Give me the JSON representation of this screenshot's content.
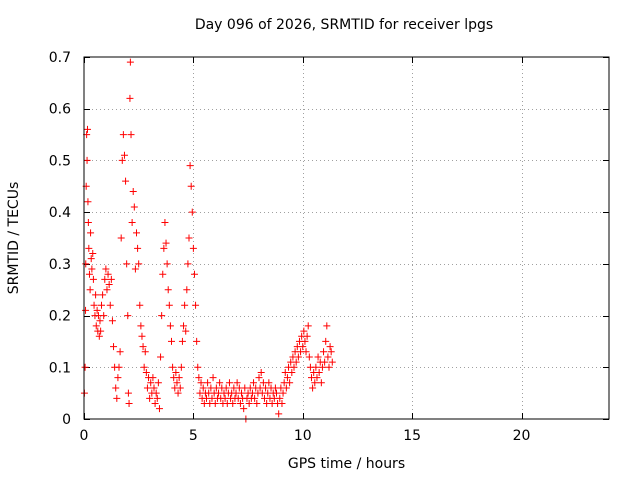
{
  "chart_data": {
    "type": "scatter",
    "title": "Day 096 of 2026, SRMTID for receiver lpgs",
    "xlabel": "GPS time / hours",
    "ylabel": "SRMTID / TECUs",
    "xlim": [
      0,
      24
    ],
    "ylim": [
      0,
      0.7
    ],
    "xticks": [
      0,
      5,
      10,
      15,
      20
    ],
    "yticks": [
      0,
      0.1,
      0.2,
      0.3,
      0.4,
      0.5,
      0.6,
      0.7
    ],
    "grid": true,
    "marker": "+",
    "series": [
      {
        "name": "SRMTID",
        "color": "#ff0000",
        "points": [
          [
            0.02,
            0.05
          ],
          [
            0.05,
            0.1
          ],
          [
            0.07,
            0.21
          ],
          [
            0.08,
            0.3
          ],
          [
            0.1,
            0.45
          ],
          [
            0.12,
            0.55
          ],
          [
            0.14,
            0.5
          ],
          [
            0.16,
            0.56
          ],
          [
            0.18,
            0.42
          ],
          [
            0.2,
            0.38
          ],
          [
            0.22,
            0.33
          ],
          [
            0.25,
            0.28
          ],
          [
            0.28,
            0.25
          ],
          [
            0.3,
            0.36
          ],
          [
            0.33,
            0.31
          ],
          [
            0.36,
            0.29
          ],
          [
            0.4,
            0.32
          ],
          [
            0.43,
            0.27
          ],
          [
            0.46,
            0.22
          ],
          [
            0.5,
            0.2
          ],
          [
            0.53,
            0.24
          ],
          [
            0.56,
            0.18
          ],
          [
            0.6,
            0.21
          ],
          [
            0.63,
            0.17
          ],
          [
            0.66,
            0.2
          ],
          [
            0.7,
            0.16
          ],
          [
            0.73,
            0.19
          ],
          [
            0.76,
            0.17
          ],
          [
            0.8,
            0.22
          ],
          [
            0.85,
            0.24
          ],
          [
            0.9,
            0.2
          ],
          [
            0.95,
            0.27
          ],
          [
            1.0,
            0.29
          ],
          [
            1.05,
            0.25
          ],
          [
            1.1,
            0.28
          ],
          [
            1.15,
            0.26
          ],
          [
            1.2,
            0.22
          ],
          [
            1.25,
            0.27
          ],
          [
            1.3,
            0.19
          ],
          [
            1.35,
            0.14
          ],
          [
            1.4,
            0.1
          ],
          [
            1.45,
            0.06
          ],
          [
            1.5,
            0.04
          ],
          [
            1.55,
            0.08
          ],
          [
            1.6,
            0.1
          ],
          [
            1.65,
            0.13
          ],
          [
            1.7,
            0.35
          ],
          [
            1.75,
            0.5
          ],
          [
            1.8,
            0.55
          ],
          [
            1.85,
            0.51
          ],
          [
            1.9,
            0.46
          ],
          [
            1.95,
            0.3
          ],
          [
            2.0,
            0.2
          ],
          [
            2.03,
            0.05
          ],
          [
            2.06,
            0.03
          ],
          [
            2.1,
            0.62
          ],
          [
            2.12,
            0.69
          ],
          [
            2.15,
            0.55
          ],
          [
            2.2,
            0.38
          ],
          [
            2.25,
            0.44
          ],
          [
            2.3,
            0.41
          ],
          [
            2.35,
            0.29
          ],
          [
            2.4,
            0.36
          ],
          [
            2.45,
            0.33
          ],
          [
            2.5,
            0.3
          ],
          [
            2.55,
            0.22
          ],
          [
            2.6,
            0.18
          ],
          [
            2.65,
            0.16
          ],
          [
            2.7,
            0.14
          ],
          [
            2.75,
            0.1
          ],
          [
            2.8,
            0.13
          ],
          [
            2.85,
            0.09
          ],
          [
            2.9,
            0.06
          ],
          [
            2.95,
            0.08
          ],
          [
            3.0,
            0.04
          ],
          [
            3.05,
            0.07
          ],
          [
            3.1,
            0.05
          ],
          [
            3.15,
            0.08
          ],
          [
            3.2,
            0.06
          ],
          [
            3.25,
            0.03
          ],
          [
            3.3,
            0.05
          ],
          [
            3.35,
            0.04
          ],
          [
            3.4,
            0.07
          ],
          [
            3.45,
            0.02
          ],
          [
            3.5,
            0.12
          ],
          [
            3.55,
            0.2
          ],
          [
            3.6,
            0.28
          ],
          [
            3.65,
            0.33
          ],
          [
            3.7,
            0.38
          ],
          [
            3.75,
            0.34
          ],
          [
            3.8,
            0.3
          ],
          [
            3.85,
            0.25
          ],
          [
            3.9,
            0.22
          ],
          [
            3.95,
            0.18
          ],
          [
            4.0,
            0.15
          ],
          [
            4.05,
            0.1
          ],
          [
            4.1,
            0.08
          ],
          [
            4.15,
            0.06
          ],
          [
            4.2,
            0.09
          ],
          [
            4.25,
            0.07
          ],
          [
            4.3,
            0.05
          ],
          [
            4.35,
            0.08
          ],
          [
            4.4,
            0.06
          ],
          [
            4.45,
            0.1
          ],
          [
            4.5,
            0.15
          ],
          [
            4.55,
            0.18
          ],
          [
            4.6,
            0.22
          ],
          [
            4.65,
            0.17
          ],
          [
            4.7,
            0.25
          ],
          [
            4.75,
            0.3
          ],
          [
            4.8,
            0.35
          ],
          [
            4.85,
            0.49
          ],
          [
            4.9,
            0.45
          ],
          [
            4.95,
            0.4
          ],
          [
            5.0,
            0.33
          ],
          [
            5.05,
            0.28
          ],
          [
            5.1,
            0.22
          ],
          [
            5.15,
            0.15
          ],
          [
            5.2,
            0.1
          ],
          [
            5.25,
            0.08
          ],
          [
            5.3,
            0.05
          ],
          [
            5.35,
            0.07
          ],
          [
            5.4,
            0.04
          ],
          [
            5.45,
            0.06
          ],
          [
            5.5,
            0.03
          ],
          [
            5.55,
            0.05
          ],
          [
            5.6,
            0.04
          ],
          [
            5.65,
            0.07
          ],
          [
            5.7,
            0.05
          ],
          [
            5.75,
            0.03
          ],
          [
            5.8,
            0.06
          ],
          [
            5.85,
            0.04
          ],
          [
            5.9,
            0.08
          ],
          [
            5.95,
            0.05
          ],
          [
            6.0,
            0.03
          ],
          [
            6.05,
            0.06
          ],
          [
            6.1,
            0.04
          ],
          [
            6.15,
            0.05
          ],
          [
            6.2,
            0.07
          ],
          [
            6.25,
            0.04
          ],
          [
            6.3,
            0.06
          ],
          [
            6.35,
            0.03
          ],
          [
            6.4,
            0.05
          ],
          [
            6.45,
            0.04
          ],
          [
            6.5,
            0.06
          ],
          [
            6.55,
            0.03
          ],
          [
            6.6,
            0.05
          ],
          [
            6.65,
            0.07
          ],
          [
            6.7,
            0.04
          ],
          [
            6.75,
            0.05
          ],
          [
            6.8,
            0.03
          ],
          [
            6.85,
            0.06
          ],
          [
            6.9,
            0.04
          ],
          [
            6.95,
            0.05
          ],
          [
            7.0,
            0.07
          ],
          [
            7.05,
            0.04
          ],
          [
            7.1,
            0.06
          ],
          [
            7.15,
            0.03
          ],
          [
            7.2,
            0.05
          ],
          [
            7.25,
            0.04
          ],
          [
            7.3,
            0.02
          ],
          [
            7.35,
            0.06
          ],
          [
            7.4,
            0.0
          ],
          [
            7.45,
            0.04
          ],
          [
            7.5,
            0.05
          ],
          [
            7.55,
            0.03
          ],
          [
            7.6,
            0.06
          ],
          [
            7.65,
            0.04
          ],
          [
            7.7,
            0.05
          ],
          [
            7.75,
            0.07
          ],
          [
            7.8,
            0.04
          ],
          [
            7.85,
            0.06
          ],
          [
            7.9,
            0.03
          ],
          [
            7.95,
            0.05
          ],
          [
            8.0,
            0.08
          ],
          [
            8.05,
            0.06
          ],
          [
            8.1,
            0.09
          ],
          [
            8.15,
            0.05
          ],
          [
            8.2,
            0.07
          ],
          [
            8.25,
            0.04
          ],
          [
            8.3,
            0.06
          ],
          [
            8.35,
            0.03
          ],
          [
            8.4,
            0.05
          ],
          [
            8.45,
            0.07
          ],
          [
            8.5,
            0.04
          ],
          [
            8.55,
            0.06
          ],
          [
            8.6,
            0.03
          ],
          [
            8.65,
            0.05
          ],
          [
            8.7,
            0.04
          ],
          [
            8.75,
            0.06
          ],
          [
            8.8,
            0.05
          ],
          [
            8.85,
            0.03
          ],
          [
            8.9,
            0.01
          ],
          [
            8.95,
            0.04
          ],
          [
            9.0,
            0.06
          ],
          [
            9.05,
            0.03
          ],
          [
            9.1,
            0.05
          ],
          [
            9.15,
            0.07
          ],
          [
            9.2,
            0.09
          ],
          [
            9.25,
            0.06
          ],
          [
            9.3,
            0.08
          ],
          [
            9.35,
            0.1
          ],
          [
            9.4,
            0.07
          ],
          [
            9.45,
            0.11
          ],
          [
            9.5,
            0.09
          ],
          [
            9.55,
            0.12
          ],
          [
            9.6,
            0.1
          ],
          [
            9.65,
            0.13
          ],
          [
            9.7,
            0.11
          ],
          [
            9.75,
            0.14
          ],
          [
            9.8,
            0.12
          ],
          [
            9.85,
            0.15
          ],
          [
            9.9,
            0.13
          ],
          [
            9.95,
            0.16
          ],
          [
            10.0,
            0.14
          ],
          [
            10.05,
            0.17
          ],
          [
            10.1,
            0.15
          ],
          [
            10.15,
            0.13
          ],
          [
            10.2,
            0.16
          ],
          [
            10.25,
            0.18
          ],
          [
            10.3,
            0.12
          ],
          [
            10.35,
            0.1
          ],
          [
            10.4,
            0.08
          ],
          [
            10.45,
            0.06
          ],
          [
            10.5,
            0.09
          ],
          [
            10.55,
            0.07
          ],
          [
            10.6,
            0.1
          ],
          [
            10.65,
            0.08
          ],
          [
            10.7,
            0.12
          ],
          [
            10.75,
            0.09
          ],
          [
            10.8,
            0.11
          ],
          [
            10.85,
            0.07
          ],
          [
            10.9,
            0.1
          ],
          [
            10.95,
            0.13
          ],
          [
            11.0,
            0.11
          ],
          [
            11.05,
            0.15
          ],
          [
            11.1,
            0.18
          ],
          [
            11.15,
            0.12
          ],
          [
            11.2,
            0.1
          ],
          [
            11.25,
            0.14
          ],
          [
            11.3,
            0.13
          ],
          [
            11.35,
            0.11
          ]
        ]
      }
    ]
  }
}
